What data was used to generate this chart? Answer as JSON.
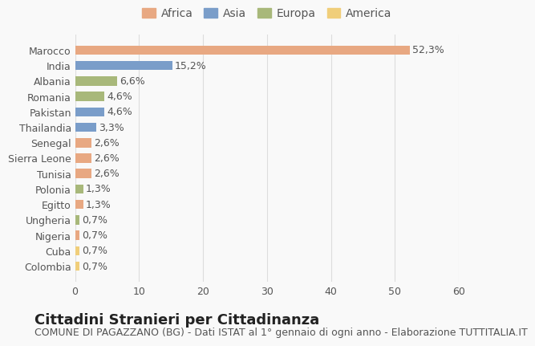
{
  "countries": [
    "Marocco",
    "India",
    "Albania",
    "Romania",
    "Pakistan",
    "Thailandia",
    "Senegal",
    "Sierra Leone",
    "Tunisia",
    "Polonia",
    "Egitto",
    "Ungheria",
    "Nigeria",
    "Cuba",
    "Colombia"
  ],
  "values": [
    52.3,
    15.2,
    6.6,
    4.6,
    4.6,
    3.3,
    2.6,
    2.6,
    2.6,
    1.3,
    1.3,
    0.7,
    0.7,
    0.7,
    0.7
  ],
  "labels": [
    "52,3%",
    "15,2%",
    "6,6%",
    "4,6%",
    "4,6%",
    "3,3%",
    "2,6%",
    "2,6%",
    "2,6%",
    "1,3%",
    "1,3%",
    "0,7%",
    "0,7%",
    "0,7%",
    "0,7%"
  ],
  "continents": [
    "Africa",
    "Asia",
    "Europa",
    "Europa",
    "Asia",
    "Asia",
    "Africa",
    "Africa",
    "Africa",
    "Europa",
    "Africa",
    "Europa",
    "Africa",
    "America",
    "America"
  ],
  "continent_colors": {
    "Africa": "#E8A882",
    "Asia": "#7A9DC9",
    "Europa": "#A8B87A",
    "America": "#F0CE7A"
  },
  "legend_order": [
    "Africa",
    "Asia",
    "Europa",
    "America"
  ],
  "title": "Cittadini Stranieri per Cittadinanza",
  "subtitle": "COMUNE DI PAGAZZANO (BG) - Dati ISTAT al 1° gennaio di ogni anno - Elaborazione TUTTITALIA.IT",
  "xlim": [
    0,
    60
  ],
  "xticks": [
    0,
    10,
    20,
    30,
    40,
    50,
    60
  ],
  "background_color": "#f9f9f9",
  "bar_height": 0.6,
  "title_fontsize": 13,
  "subtitle_fontsize": 9,
  "tick_fontsize": 9,
  "label_fontsize": 9,
  "legend_fontsize": 10
}
